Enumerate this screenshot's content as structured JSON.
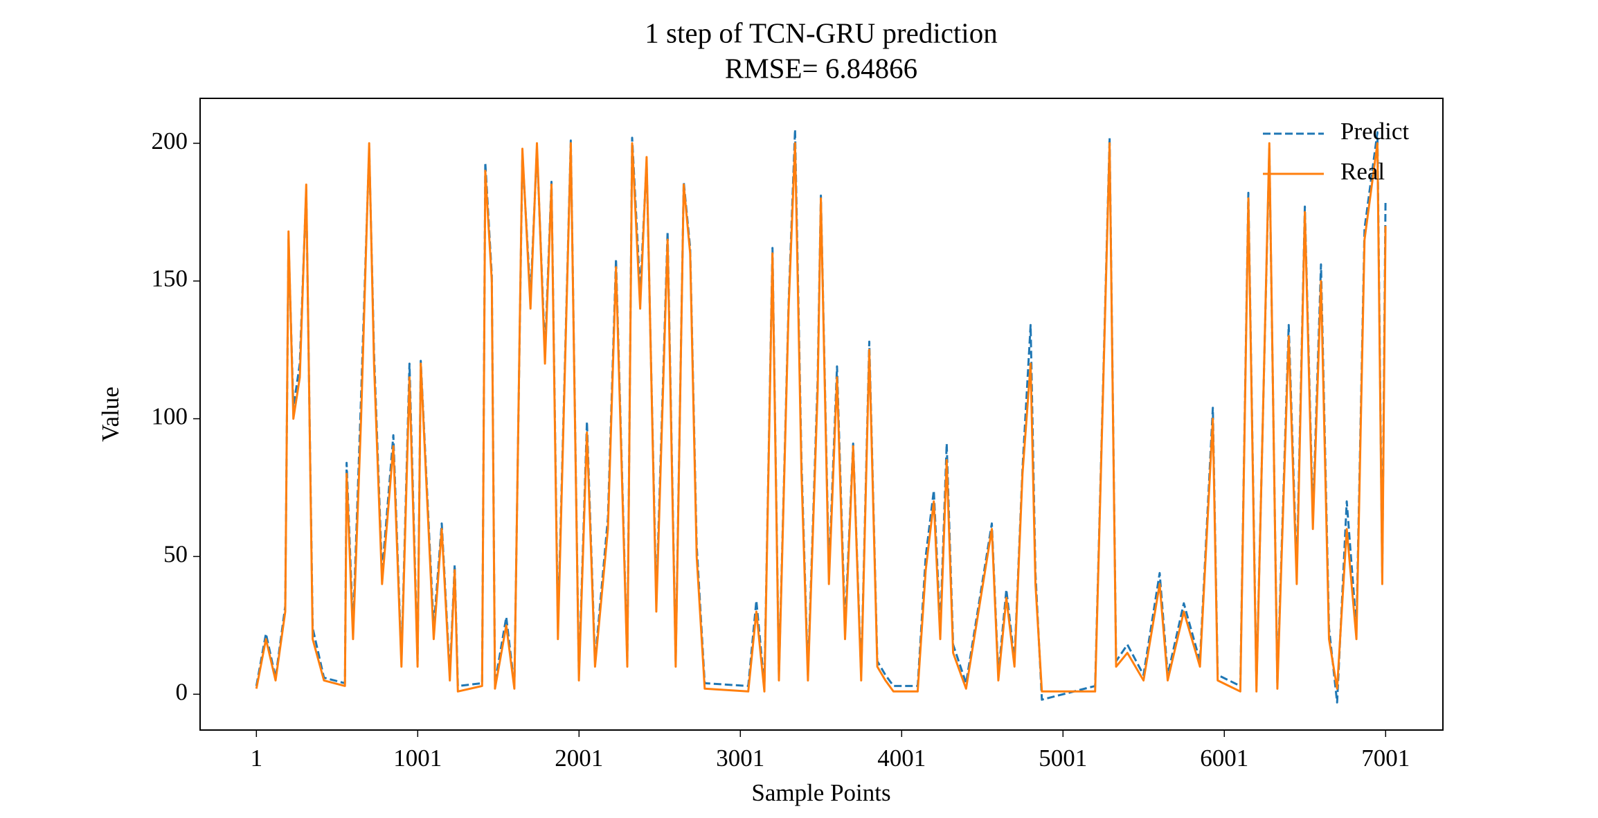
{
  "chart_data": {
    "type": "line",
    "title": "1 step of TCN-GRU prediction",
    "subtitle": "RMSE= 6.84866",
    "x_label": "Sample Points",
    "y_label": "Value",
    "x": [
      1,
      60,
      120,
      180,
      200,
      230,
      270,
      310,
      350,
      420,
      550,
      560,
      600,
      650,
      700,
      730,
      780,
      850,
      900,
      950,
      1000,
      1020,
      1100,
      1150,
      1200,
      1230,
      1250,
      1400,
      1420,
      1460,
      1480,
      1550,
      1600,
      1650,
      1700,
      1740,
      1790,
      1830,
      1870,
      1950,
      2000,
      2050,
      2100,
      2180,
      2230,
      2300,
      2330,
      2380,
      2420,
      2480,
      2550,
      2600,
      2650,
      2690,
      2730,
      2780,
      3050,
      3100,
      3150,
      3200,
      3240,
      3300,
      3340,
      3380,
      3420,
      3480,
      3500,
      3550,
      3600,
      3650,
      3700,
      3750,
      3800,
      3850,
      3900,
      3950,
      4100,
      4150,
      4200,
      4240,
      4280,
      4320,
      4400,
      4560,
      4600,
      4650,
      4700,
      4750,
      4800,
      4830,
      4870,
      5200,
      5290,
      5330,
      5400,
      5500,
      5600,
      5650,
      5750,
      5850,
      5930,
      5960,
      6100,
      6150,
      6200,
      6280,
      6330,
      6400,
      6450,
      6500,
      6550,
      6600,
      6650,
      6700,
      6760,
      6820,
      6870,
      6950,
      6980,
      7000
    ],
    "series": [
      {
        "name": "Predict",
        "color": "#1f77b4",
        "dashed": true,
        "values": [
          3,
          22,
          6,
          32,
          165,
          104,
          120,
          183,
          24,
          6,
          4,
          84,
          24,
          108,
          198,
          124,
          44,
          94,
          12,
          120,
          12,
          121,
          24,
          62,
          7,
          47,
          3,
          4,
          193,
          152,
          4,
          28,
          3,
          196,
          144,
          198,
          124,
          186,
          24,
          201,
          7,
          99,
          12,
          64,
          158,
          12,
          202,
          146,
          193,
          34,
          168,
          12,
          186,
          162,
          54,
          4,
          3,
          34,
          3,
          162,
          7,
          142,
          205,
          84,
          7,
          114,
          181,
          44,
          119,
          24,
          91,
          7,
          128,
          12,
          7,
          3,
          3,
          50,
          74,
          24,
          91,
          18,
          4,
          62,
          7,
          38,
          12,
          82,
          134,
          44,
          -2,
          3,
          202,
          12,
          18,
          7,
          44,
          7,
          33,
          12,
          104,
          7,
          3,
          182,
          3,
          198,
          4,
          134,
          44,
          177,
          64,
          156,
          24,
          -3,
          70,
          24,
          169,
          204,
          44,
          179
        ]
      },
      {
        "name": "Real",
        "color": "#ff7f0e",
        "dashed": false,
        "values": [
          2,
          20,
          5,
          30,
          168,
          100,
          115,
          185,
          20,
          5,
          3,
          80,
          20,
          100,
          200,
          120,
          40,
          90,
          10,
          115,
          10,
          120,
          20,
          60,
          5,
          45,
          1,
          3,
          190,
          150,
          2,
          25,
          2,
          198,
          140,
          200,
          120,
          185,
          20,
          200,
          5,
          95,
          10,
          60,
          155,
          10,
          200,
          140,
          195,
          30,
          165,
          10,
          185,
          160,
          50,
          2,
          1,
          30,
          1,
          160,
          5,
          140,
          200,
          80,
          5,
          110,
          180,
          40,
          115,
          20,
          90,
          5,
          125,
          10,
          5,
          1,
          1,
          45,
          70,
          20,
          85,
          15,
          2,
          60,
          5,
          35,
          10,
          80,
          120,
          40,
          1,
          1,
          200,
          10,
          15,
          5,
          40,
          5,
          30,
          10,
          100,
          5,
          1,
          180,
          1,
          200,
          2,
          130,
          40,
          175,
          60,
          150,
          20,
          2,
          60,
          20,
          165,
          200,
          40,
          170
        ]
      }
    ],
    "xlim": [
      -348,
      7356
    ],
    "ylim": [
      -13,
      216.3
    ],
    "xticks": [
      1,
      1001,
      2001,
      3001,
      4001,
      5001,
      6001,
      7001
    ],
    "yticks": [
      0,
      50,
      100,
      150,
      200
    ],
    "legend": "upper right"
  }
}
